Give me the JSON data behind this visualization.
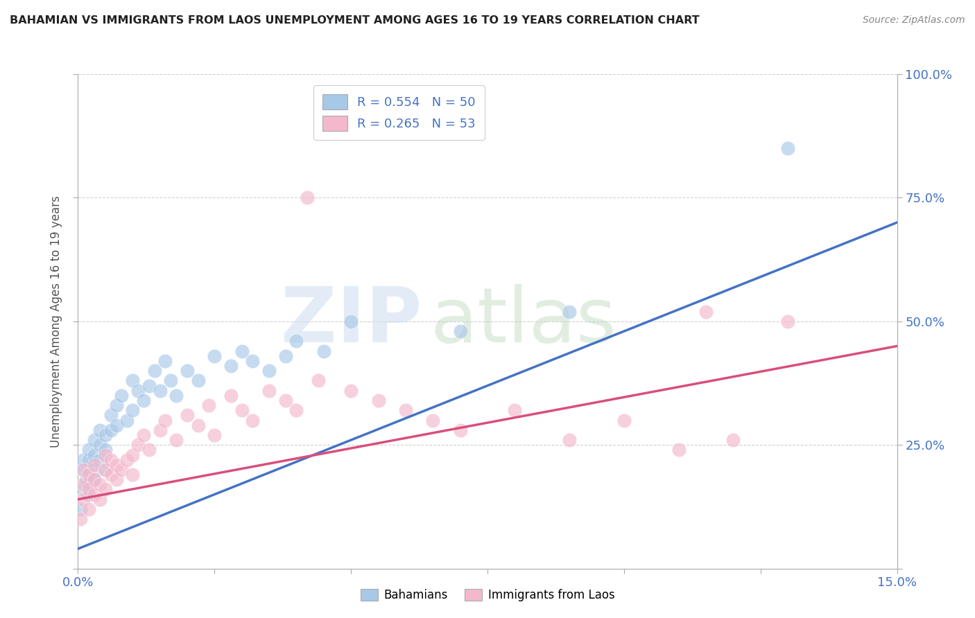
{
  "title": "BAHAMIAN VS IMMIGRANTS FROM LAOS UNEMPLOYMENT AMONG AGES 16 TO 19 YEARS CORRELATION CHART",
  "source": "Source: ZipAtlas.com",
  "ylabel": "Unemployment Among Ages 16 to 19 years",
  "xlim": [
    0.0,
    0.15
  ],
  "ylim": [
    0.0,
    1.0
  ],
  "xtick_positions": [
    0.0,
    0.025,
    0.05,
    0.075,
    0.1,
    0.125,
    0.15
  ],
  "xticklabels": [
    "0.0%",
    "",
    "",
    "",
    "",
    "",
    "15.0%"
  ],
  "ytick_positions": [
    0.0,
    0.25,
    0.5,
    0.75,
    1.0
  ],
  "yticklabels_right": [
    "",
    "25.0%",
    "50.0%",
    "75.0%",
    "100.0%"
  ],
  "bahamian_color": "#a8c8e8",
  "laos_color": "#f4b8cc",
  "bahamian_line_color": "#4472c4",
  "laos_line_color": "#d94f7a",
  "tick_label_color": "#4472c4",
  "R_bahamian": 0.554,
  "N_bahamian": 50,
  "R_laos": 0.265,
  "N_laos": 53,
  "blue_line_y0": 0.04,
  "blue_line_y1": 0.7,
  "pink_line_y0": 0.14,
  "pink_line_y1": 0.45,
  "legend_label1": "R = 0.554   N = 50",
  "legend_label2": "R = 0.265   N = 53",
  "bottom_label1": "Bahamians",
  "bottom_label2": "Immigrants from Laos",
  "bahamian_x": [
    0.0005,
    0.001,
    0.001,
    0.001,
    0.0015,
    0.002,
    0.002,
    0.002,
    0.002,
    0.002,
    0.003,
    0.003,
    0.003,
    0.003,
    0.004,
    0.004,
    0.004,
    0.005,
    0.005,
    0.005,
    0.006,
    0.006,
    0.007,
    0.007,
    0.008,
    0.009,
    0.01,
    0.01,
    0.011,
    0.012,
    0.013,
    0.014,
    0.015,
    0.016,
    0.017,
    0.018,
    0.02,
    0.022,
    0.025,
    0.028,
    0.03,
    0.032,
    0.035,
    0.038,
    0.04,
    0.045,
    0.05,
    0.07,
    0.09,
    0.13
  ],
  "bahamian_y": [
    0.12,
    0.16,
    0.2,
    0.22,
    0.18,
    0.15,
    0.19,
    0.22,
    0.24,
    0.17,
    0.2,
    0.23,
    0.26,
    0.18,
    0.22,
    0.25,
    0.28,
    0.2,
    0.24,
    0.27,
    0.28,
    0.31,
    0.29,
    0.33,
    0.35,
    0.3,
    0.32,
    0.38,
    0.36,
    0.34,
    0.37,
    0.4,
    0.36,
    0.42,
    0.38,
    0.35,
    0.4,
    0.38,
    0.43,
    0.41,
    0.44,
    0.42,
    0.4,
    0.43,
    0.46,
    0.44,
    0.5,
    0.48,
    0.52,
    0.85
  ],
  "laos_x": [
    0.0005,
    0.001,
    0.001,
    0.001,
    0.002,
    0.002,
    0.002,
    0.003,
    0.003,
    0.003,
    0.004,
    0.004,
    0.005,
    0.005,
    0.005,
    0.006,
    0.006,
    0.007,
    0.007,
    0.008,
    0.009,
    0.01,
    0.01,
    0.011,
    0.012,
    0.013,
    0.015,
    0.016,
    0.018,
    0.02,
    0.022,
    0.024,
    0.025,
    0.028,
    0.03,
    0.032,
    0.035,
    0.038,
    0.04,
    0.042,
    0.044,
    0.05,
    0.055,
    0.06,
    0.065,
    0.07,
    0.08,
    0.09,
    0.1,
    0.11,
    0.115,
    0.12,
    0.13
  ],
  "laos_y": [
    0.1,
    0.14,
    0.17,
    0.2,
    0.12,
    0.16,
    0.19,
    0.15,
    0.18,
    0.21,
    0.14,
    0.17,
    0.16,
    0.2,
    0.23,
    0.19,
    0.22,
    0.18,
    0.21,
    0.2,
    0.22,
    0.19,
    0.23,
    0.25,
    0.27,
    0.24,
    0.28,
    0.3,
    0.26,
    0.31,
    0.29,
    0.33,
    0.27,
    0.35,
    0.32,
    0.3,
    0.36,
    0.34,
    0.32,
    0.75,
    0.38,
    0.36,
    0.34,
    0.32,
    0.3,
    0.28,
    0.32,
    0.26,
    0.3,
    0.24,
    0.52,
    0.26,
    0.5
  ]
}
